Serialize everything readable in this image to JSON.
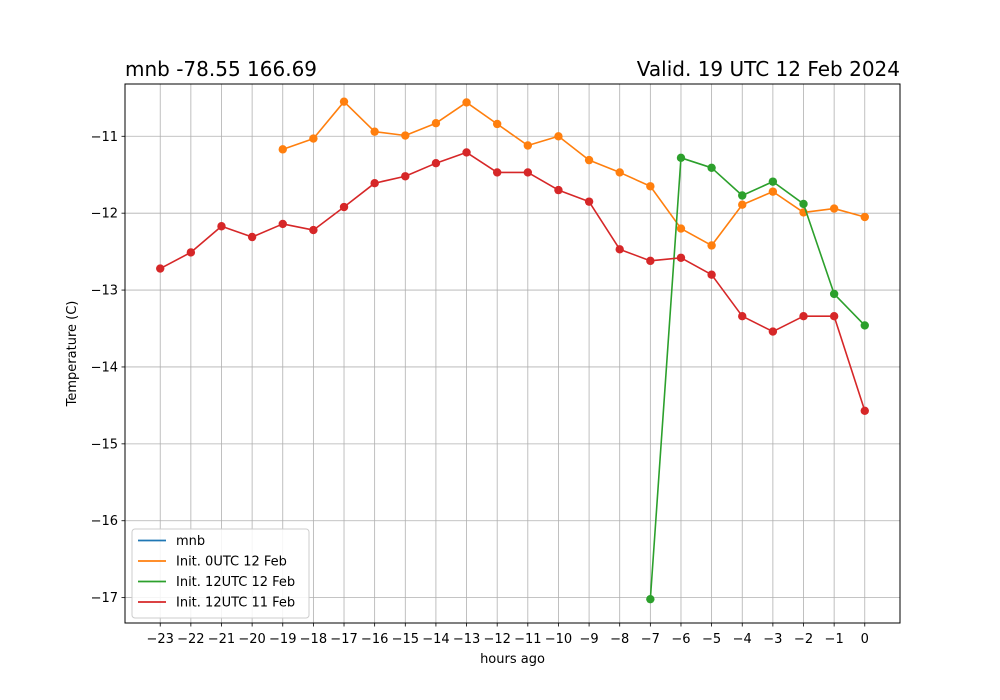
{
  "header": {
    "title_left": "mnb -78.55 166.69",
    "title_right": "Valid. 19 UTC 12 Feb 2024"
  },
  "chart_data": {
    "type": "line",
    "xlabel": "hours ago",
    "ylabel": "Temperature (C)",
    "xlim": [
      -24.15,
      1.15
    ],
    "ylim": [
      -17.33,
      -10.32
    ],
    "xticks": [
      -23,
      -22,
      -21,
      -20,
      -19,
      -18,
      -17,
      -16,
      -15,
      -14,
      -13,
      -12,
      -11,
      -10,
      -9,
      -8,
      -7,
      -6,
      -5,
      -4,
      -3,
      -2,
      -1,
      0
    ],
    "xtick_labels": [
      "−23",
      "−22",
      "−21",
      "−20",
      "−19",
      "−18",
      "−17",
      "−16",
      "−15",
      "−14",
      "−13",
      "−12",
      "−11",
      "−10",
      "−9",
      "−8",
      "−7",
      "−6",
      "−5",
      "−4",
      "−3",
      "−2",
      "−1",
      "0"
    ],
    "yticks": [
      -17,
      -16,
      -15,
      -14,
      -13,
      -12,
      -11
    ],
    "ytick_labels": [
      "−17",
      "−16",
      "−15",
      "−14",
      "−13",
      "−12",
      "−11"
    ],
    "grid": true,
    "legend_position": "lower-left",
    "series": [
      {
        "name": "mnb",
        "color": "#1f77b4",
        "x": [],
        "y": []
      },
      {
        "name": "Init. 0UTC 12 Feb",
        "color": "#ff7f0e",
        "x": [
          -19,
          -18,
          -17,
          -16,
          -15,
          -14,
          -13,
          -12,
          -11,
          -10,
          -9,
          -8,
          -7,
          -6,
          -5,
          -4,
          -3,
          -2,
          -1,
          0
        ],
        "y": [
          -11.17,
          -11.03,
          -10.55,
          -10.94,
          -10.99,
          -10.83,
          -10.56,
          -10.84,
          -11.12,
          -11.0,
          -11.31,
          -11.47,
          -11.65,
          -12.2,
          -12.42,
          -11.89,
          -11.72,
          -11.99,
          -11.94,
          -12.05
        ]
      },
      {
        "name": "Init. 12UTC 12 Feb",
        "color": "#2ca02c",
        "x": [
          -7,
          -6,
          -5,
          -4,
          -3,
          -2,
          -1,
          0
        ],
        "y": [
          -17.02,
          -11.28,
          -11.41,
          -11.77,
          -11.59,
          -11.88,
          -13.05,
          -13.46
        ]
      },
      {
        "name": "Init. 12UTC 11 Feb",
        "color": "#d62728",
        "x": [
          -23,
          -22,
          -21,
          -20,
          -19,
          -18,
          -17,
          -16,
          -15,
          -14,
          -13,
          -12,
          -11,
          -10,
          -9,
          -8,
          -7,
          -6,
          -5,
          -4,
          -3,
          -2,
          -1,
          0
        ],
        "y": [
          -12.72,
          -12.51,
          -12.17,
          -12.31,
          -12.14,
          -12.22,
          -11.92,
          -11.61,
          -11.52,
          -11.35,
          -11.21,
          -11.47,
          -11.47,
          -11.7,
          -11.85,
          -12.47,
          -12.62,
          -12.58,
          -12.8,
          -13.34,
          -13.54,
          -13.34,
          -13.34,
          -14.57
        ]
      }
    ]
  }
}
